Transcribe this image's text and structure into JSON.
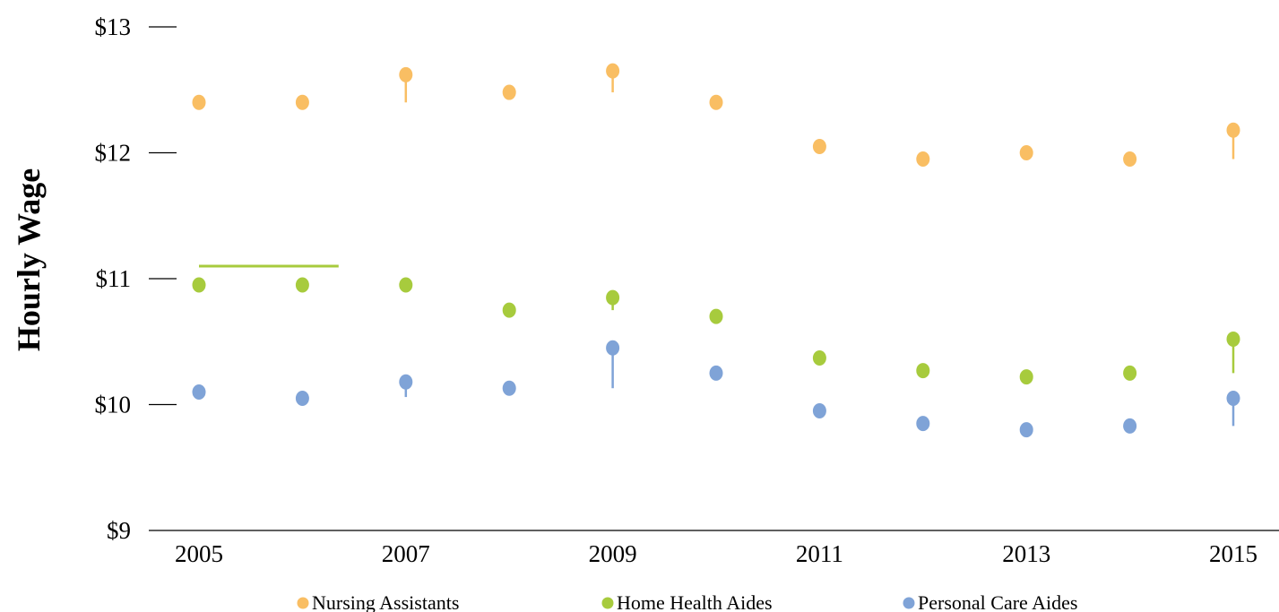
{
  "chart_data": {
    "type": "scatter",
    "title": "",
    "xlabel": "",
    "ylabel": "Hourly Wage",
    "x": [
      2005,
      2006,
      2007,
      2008,
      2009,
      2010,
      2011,
      2012,
      2013,
      2014,
      2015
    ],
    "x_tick_labels": [
      "2005",
      "2007",
      "2009",
      "2011",
      "2013",
      "2015"
    ],
    "x_tick_values": [
      2005,
      2007,
      2009,
      2011,
      2013,
      2015
    ],
    "y_tick_labels": [
      "$9",
      "$10",
      "$11",
      "$12",
      "$13"
    ],
    "y_tick_values": [
      9,
      10,
      11,
      12,
      13
    ],
    "ylim": [
      9,
      13
    ],
    "grid": false,
    "legend_position": "bottom",
    "series": [
      {
        "name": "Nursing Assistants",
        "color": "#F9BE63",
        "values": [
          12.4,
          12.4,
          12.62,
          12.48,
          12.65,
          12.4,
          12.05,
          11.95,
          12.0,
          11.95,
          12.18
        ],
        "range_ends": [
          null,
          null,
          12.4,
          null,
          12.48,
          null,
          null,
          null,
          null,
          null,
          11.95
        ]
      },
      {
        "name": "Home Health Aides",
        "color": "#A7CB3D",
        "values": [
          10.95,
          10.95,
          10.95,
          10.75,
          10.85,
          10.7,
          10.37,
          10.27,
          10.22,
          10.25,
          10.52
        ],
        "range_ends": [
          null,
          null,
          null,
          null,
          10.75,
          null,
          null,
          null,
          null,
          null,
          10.25
        ]
      },
      {
        "name": "Personal Care Aides",
        "color": "#7FA3D7",
        "values": [
          10.1,
          10.05,
          10.18,
          10.13,
          10.45,
          10.25,
          9.95,
          9.85,
          9.8,
          9.83,
          10.05
        ],
        "range_ends": [
          null,
          null,
          10.06,
          null,
          10.13,
          null,
          null,
          null,
          null,
          null,
          9.83
        ]
      }
    ],
    "annotations": [
      {
        "type": "horizontal-line",
        "color": "#A7CB3D",
        "y": 11.1,
        "x_start": 2005,
        "x_end": 2006.35
      }
    ]
  }
}
